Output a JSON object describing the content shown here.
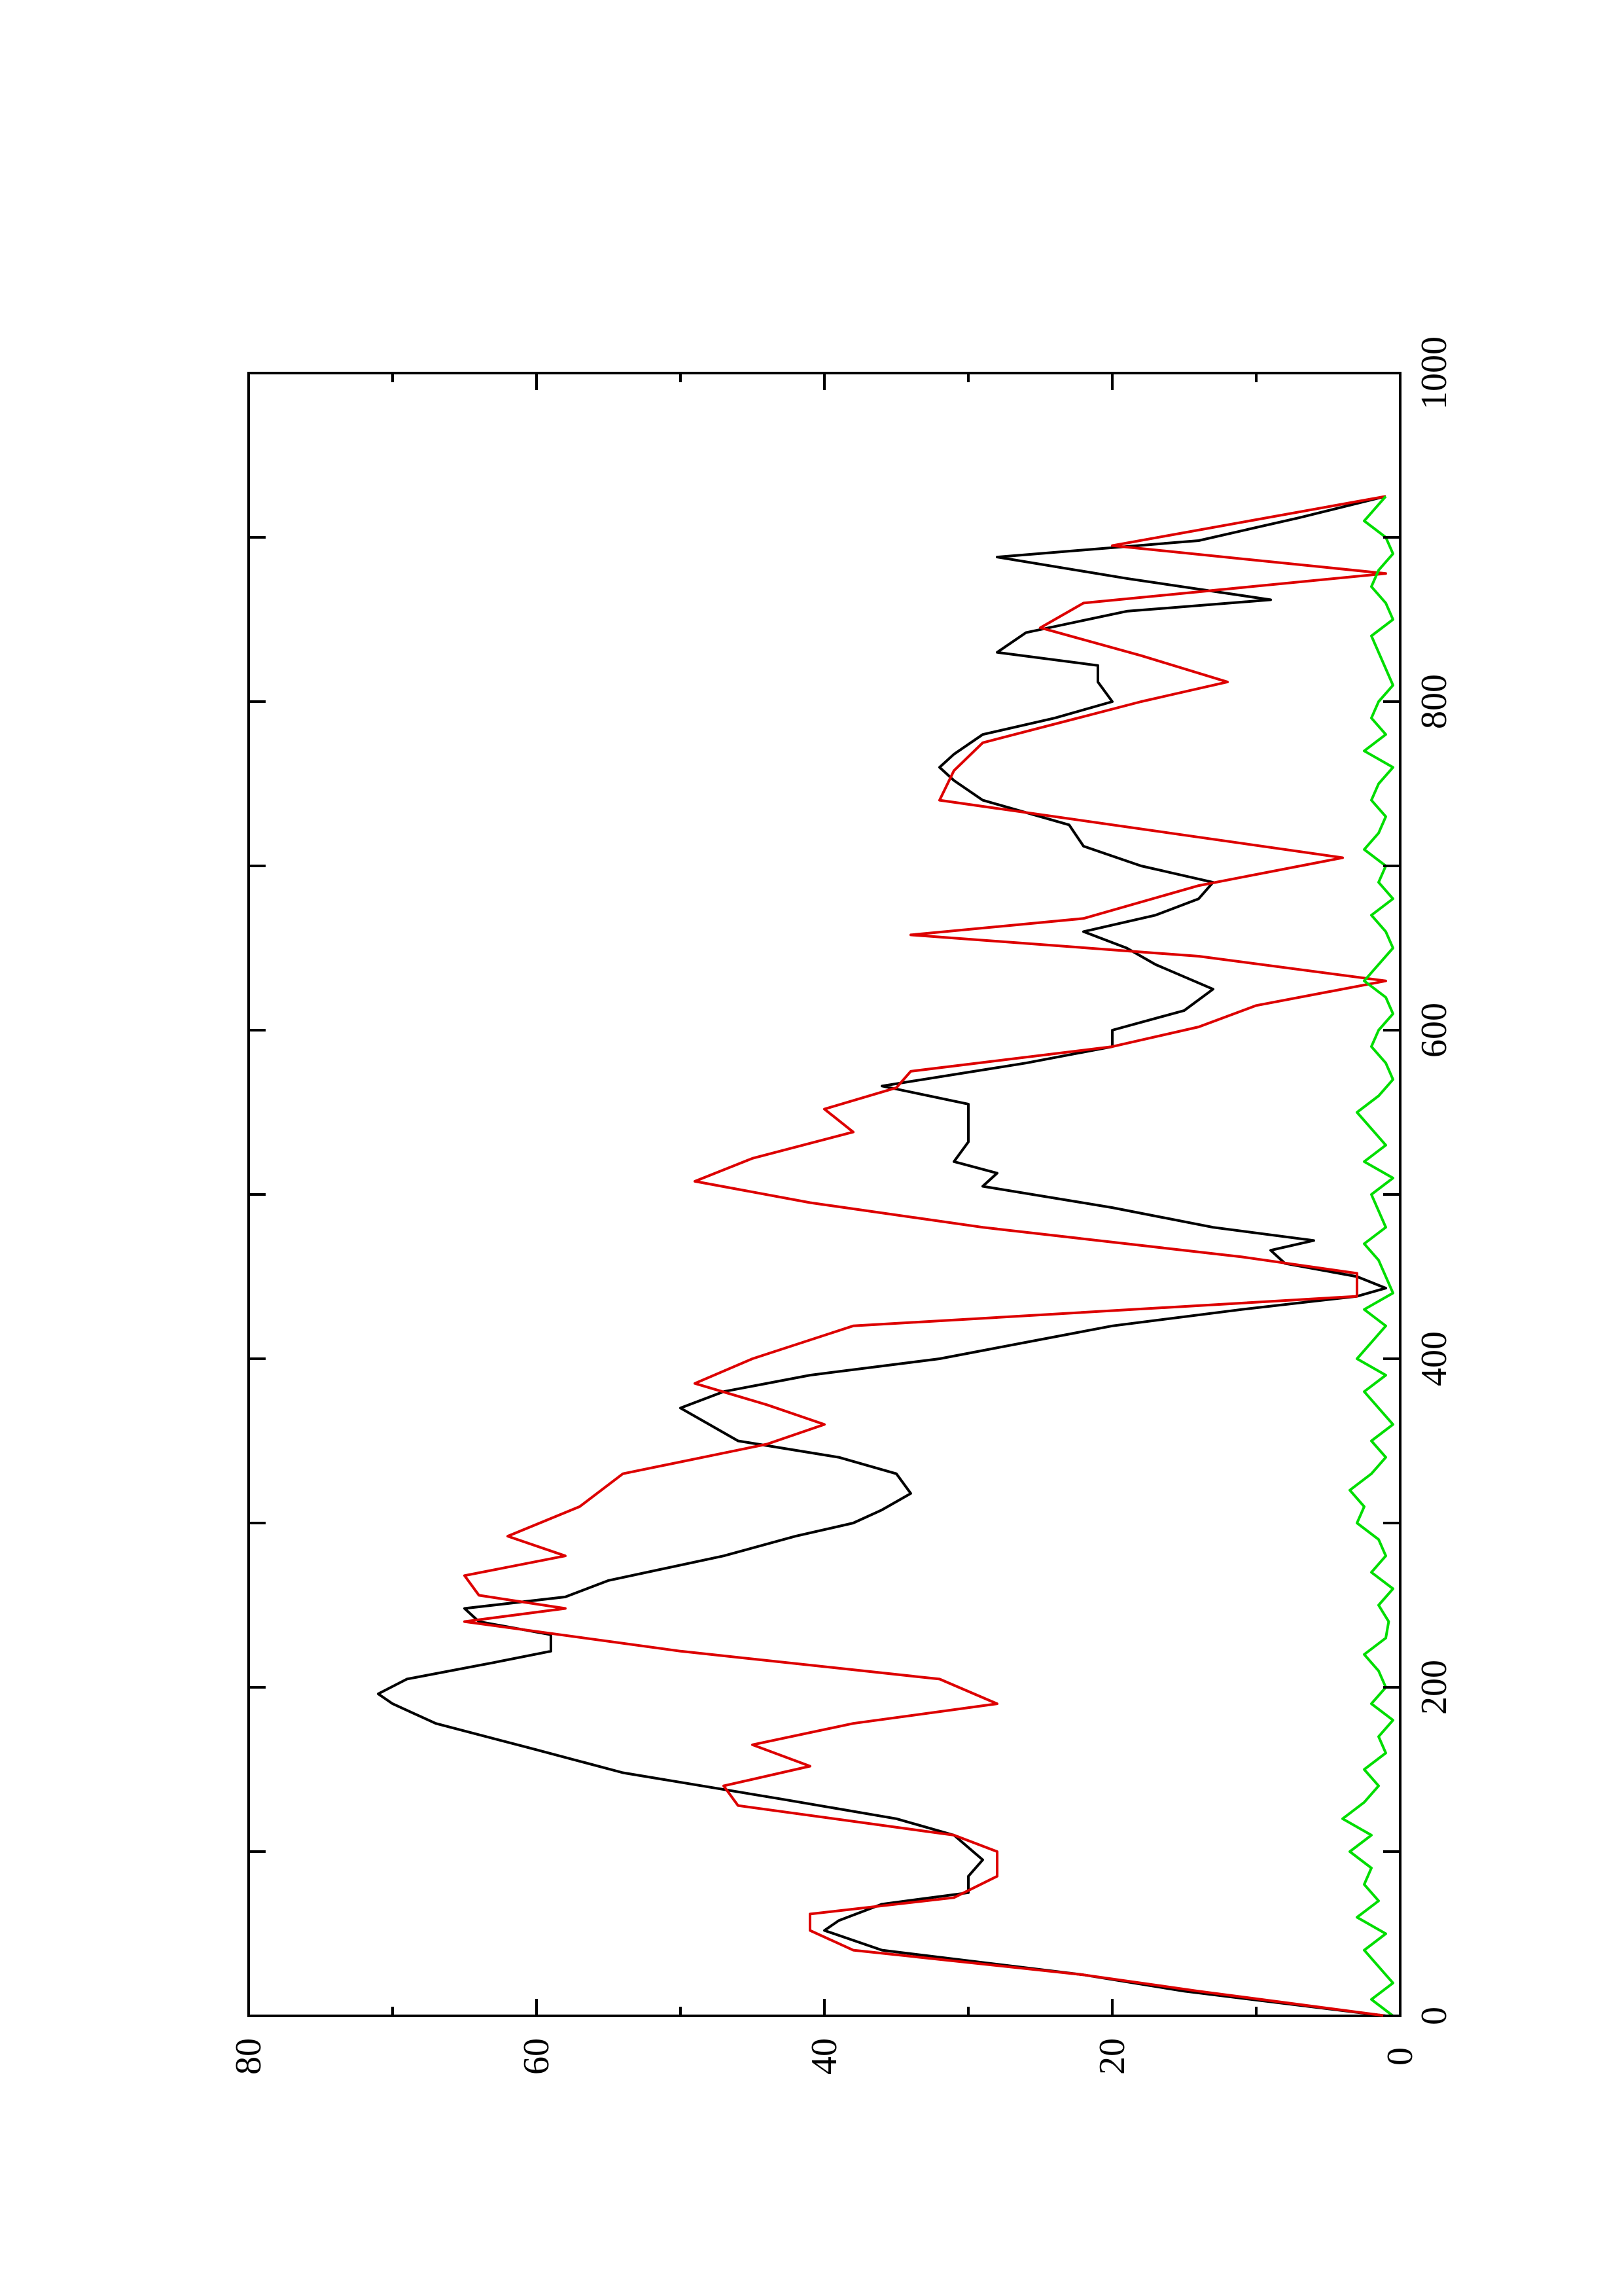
{
  "chart_data": {
    "type": "line",
    "orientation": "rotated-90-ccw",
    "title": "",
    "xlabel": "",
    "ylabel": "",
    "xlim": [
      0,
      1000
    ],
    "ylim": [
      0,
      80
    ],
    "x_ticks": [
      "0",
      "200",
      "400",
      "600",
      "800",
      "1000"
    ],
    "y_ticks": [
      "0",
      "20",
      "40",
      "60",
      "80"
    ],
    "grid": false,
    "legend": "none",
    "series": [
      {
        "color": "#000000",
        "x": [
          0,
          15,
          25,
          40,
          52,
          58,
          68,
          75,
          85,
          95,
          110,
          120,
          132,
          148,
          162,
          178,
          190,
          196,
          205,
          215,
          222,
          232,
          240,
          248,
          255,
          265,
          280,
          292,
          300,
          308,
          318,
          330,
          340,
          350,
          360,
          370,
          380,
          390,
          400,
          410,
          420,
          430,
          438,
          443,
          450,
          458,
          466,
          472,
          480,
          492,
          505,
          513,
          520,
          532,
          545,
          555,
          566,
          580,
          590,
          600,
          612,
          625,
          640,
          650,
          660,
          670,
          680,
          690,
          700,
          712,
          725,
          740,
          752,
          760,
          768,
          780,
          790,
          800,
          812,
          822,
          830,
          842,
          855,
          862,
          875,
          888,
          898,
          912,
          925
        ],
        "y": [
          1,
          15,
          22,
          36,
          40,
          39,
          36,
          30,
          30,
          29,
          31,
          35,
          43,
          54,
          60,
          67,
          70,
          71,
          69,
          63,
          59,
          59,
          64,
          65,
          58,
          55,
          47,
          42,
          38,
          36,
          34,
          35,
          39,
          46,
          48,
          50,
          47,
          41,
          32,
          26,
          20,
          11,
          3,
          1,
          3,
          8,
          9,
          6,
          13,
          20,
          29,
          28,
          31,
          30,
          30,
          30,
          36,
          26,
          20,
          20,
          15,
          13,
          17,
          19,
          22,
          17,
          14,
          13,
          18,
          22,
          23,
          29,
          31,
          32,
          31,
          29,
          24,
          20,
          21,
          21,
          28,
          26,
          19,
          9,
          19,
          28,
          14,
          7,
          1
        ]
      },
      {
        "color": "#dd0000",
        "x": [
          0,
          15,
          25,
          40,
          52,
          62,
          72,
          85,
          100,
          110,
          128,
          140,
          152,
          165,
          178,
          190,
          205,
          222,
          240,
          248,
          256,
          268,
          280,
          292,
          310,
          330,
          348,
          360,
          372,
          385,
          400,
          420,
          438,
          452,
          462,
          480,
          495,
          508,
          522,
          538,
          552,
          565,
          575,
          590,
          602,
          615,
          630,
          645,
          658,
          668,
          688,
          705,
          720,
          740,
          758,
          775,
          800,
          812,
          828,
          845,
          860,
          878,
          895,
          925
        ],
        "y": [
          1,
          14,
          22,
          38,
          41,
          41,
          31,
          28,
          28,
          31,
          46,
          47,
          41,
          45,
          38,
          28,
          32,
          50,
          65,
          58,
          64,
          65,
          58,
          62,
          57,
          54,
          44,
          40,
          44,
          49,
          45,
          38,
          3,
          3,
          11,
          29,
          41,
          49,
          45,
          38,
          40,
          35,
          34,
          20,
          14,
          10,
          1,
          14,
          34,
          22,
          14,
          4,
          16,
          32,
          31,
          29,
          18,
          12,
          18,
          25,
          22,
          1,
          20,
          1
        ]
      },
      {
        "color": "#00dd00",
        "x": [
          0,
          10,
          20,
          30,
          40,
          50,
          60,
          70,
          80,
          90,
          100,
          110,
          120,
          130,
          140,
          150,
          160,
          170,
          180,
          190,
          200,
          210,
          220,
          230,
          240,
          250,
          260,
          270,
          280,
          290,
          300,
          310,
          320,
          330,
          340,
          350,
          360,
          370,
          380,
          390,
          400,
          410,
          420,
          430,
          440,
          450,
          460,
          470,
          480,
          490,
          500,
          510,
          520,
          530,
          540,
          550,
          560,
          570,
          580,
          590,
          600,
          610,
          620,
          630,
          640,
          650,
          660,
          670,
          680,
          690,
          700,
          710,
          720,
          730,
          740,
          750,
          760,
          770,
          780,
          790,
          800,
          810,
          820,
          830,
          840,
          850,
          860,
          870,
          880,
          890,
          900,
          910,
          920,
          925
        ],
        "y": [
          0.5,
          2,
          0.5,
          1.5,
          2.5,
          1,
          3,
          1.5,
          2.5,
          2,
          3.5,
          2,
          4,
          2.5,
          1.5,
          2.5,
          1,
          1.5,
          0.5,
          2,
          1,
          1.5,
          2.5,
          1,
          0.8,
          1.5,
          0.5,
          2,
          1,
          1.5,
          3,
          2.5,
          3.5,
          2,
          1,
          2,
          0.5,
          1.5,
          2.5,
          1,
          3,
          2,
          1,
          2.5,
          0.5,
          1,
          1.5,
          2.5,
          1,
          1.5,
          2,
          0.5,
          2.5,
          1,
          2,
          3,
          1.5,
          0.5,
          1,
          2,
          1.5,
          0.5,
          1,
          2.5,
          1.5,
          0.5,
          1,
          2,
          0.5,
          1.5,
          1,
          2.5,
          1.5,
          1,
          2,
          1.5,
          0.5,
          2.5,
          1,
          2,
          1.5,
          0.5,
          1,
          1.5,
          2,
          0.5,
          1,
          2,
          1.5,
          0.5,
          1,
          2.5,
          1.5,
          1
        ]
      }
    ]
  }
}
